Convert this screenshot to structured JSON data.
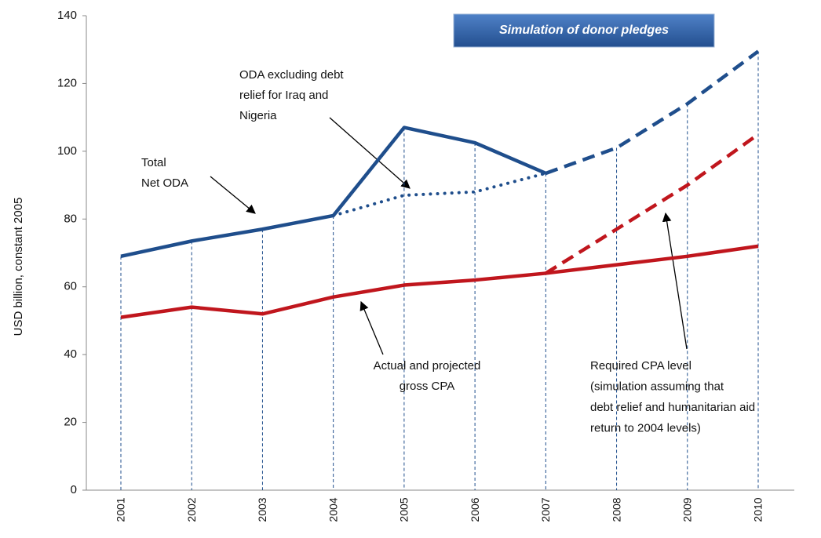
{
  "chart_data": {
    "type": "line",
    "box_title": "Simulation of donor pledges",
    "y_label": "USD billion, constant 2005",
    "categories": [
      "2001",
      "2002",
      "2003",
      "2004",
      "2005",
      "2006",
      "2007",
      "2008",
      "2009",
      "2010"
    ],
    "series": [
      {
        "color": "#1f4e8c",
        "style": "solid",
        "values": [
          69,
          73.5,
          77,
          81,
          107,
          102.5,
          93.5,
          null,
          null,
          null
        ]
      },
      {
        "color": "#1f4e8c",
        "style": "dashed",
        "values": [
          null,
          null,
          null,
          null,
          null,
          null,
          93.5,
          101,
          114,
          129.5
        ]
      },
      {
        "color": "#1f4e8c",
        "style": "dotted",
        "values": [
          null,
          null,
          null,
          81,
          87,
          88,
          93.5,
          null,
          null,
          null
        ]
      },
      {
        "color": "#c0161d",
        "style": "solid",
        "values": [
          51,
          54,
          52,
          57,
          60.5,
          62,
          64,
          66.5,
          69,
          72
        ]
      },
      {
        "color": "#c0161d",
        "style": "dashed",
        "values": [
          null,
          null,
          null,
          null,
          null,
          null,
          64,
          77,
          90,
          105
        ]
      }
    ],
    "annotations": [
      {
        "lines": [
          "Total",
          "Net ODA"
        ]
      },
      {
        "lines": [
          "ODA excluding debt",
          "relief for Iraq and",
          "Nigeria"
        ]
      },
      {
        "lines": [
          "Actual and projected",
          "gross CPA"
        ]
      },
      {
        "lines": [
          "Required CPA level",
          "(simulation assuming that",
          "debt relief and  humanitarian aid",
          "return to 2004 levels)"
        ]
      }
    ],
    "ylim": [
      0,
      140
    ],
    "yticks": [
      0,
      20,
      40,
      60,
      80,
      100,
      120,
      140
    ]
  }
}
